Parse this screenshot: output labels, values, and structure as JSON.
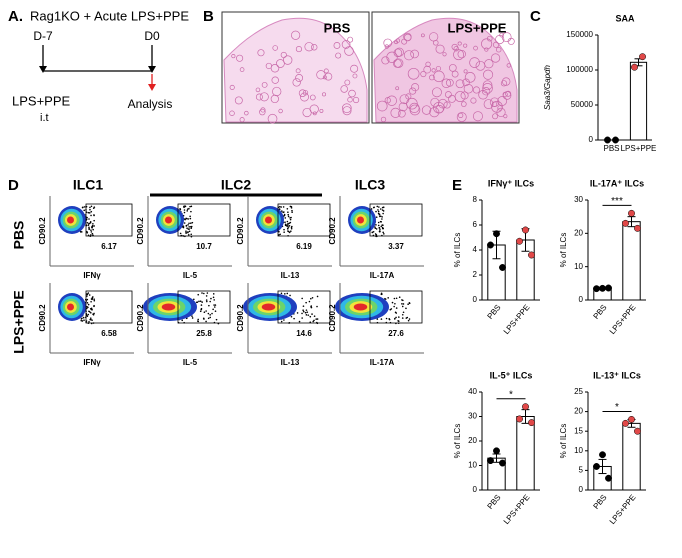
{
  "panel_a": {
    "letter": "A.",
    "title": "Rag1KO  + Acute LPS+PPE",
    "day_start": "D-7",
    "day_end": "D0",
    "treatment": "LPS+PPE",
    "route": "i.t",
    "readout": "Analysis"
  },
  "panel_b": {
    "letter": "B",
    "labels": [
      "PBS",
      "LPS+PPE"
    ]
  },
  "panel_c": {
    "letter": "C"
  },
  "panel_d": {
    "letter": "D",
    "columns": [
      "ILC1",
      "ILC2",
      "ILC3"
    ],
    "y_axis": "CD90.2",
    "x_axes": [
      "IFNγ",
      "IL-5",
      "IL-13",
      "IL-17A"
    ],
    "rows": [
      {
        "label": "PBS",
        "gates": [
          "6.17",
          "10.7",
          "6.19",
          "3.37"
        ]
      },
      {
        "label": "LPS+PPE",
        "gates": [
          "6.58",
          "25.8",
          "14.6",
          "27.6"
        ]
      }
    ]
  },
  "panel_e": {
    "letter": "E"
  },
  "chart_data": [
    {
      "type": "bar",
      "title": "SAA",
      "ylabel": "Saa3/Gapdh",
      "categories": [
        "PBS",
        "LPS+PPE"
      ],
      "values": [
        0,
        111000
      ],
      "errors": [
        0,
        5000
      ],
      "points": [
        [
          0,
          0
        ],
        [
          104000,
          119000
        ]
      ],
      "point_colors": [
        "#000000",
        "#e04848"
      ],
      "bar_color": "#ffffff",
      "ylim": [
        0,
        150000
      ],
      "yticks": [
        0,
        50000,
        100000,
        150000
      ]
    },
    {
      "type": "bar",
      "title": "IFNγ⁺ ILCs",
      "ylabel": "% of ILCs",
      "categories": [
        "PBS",
        "LPS+PPE"
      ],
      "values": [
        4.4,
        4.8
      ],
      "errors": [
        1.1,
        0.9
      ],
      "points": [
        [
          5.3,
          4.4,
          2.6
        ],
        [
          5.6,
          4.7,
          3.6
        ]
      ],
      "point_colors": [
        "#000000",
        "#e04848"
      ],
      "bar_color": "#ffffff",
      "ylim": [
        0,
        8
      ],
      "yticks": [
        0,
        2,
        4,
        6,
        8
      ]
    },
    {
      "type": "bar",
      "title": "IL-17A⁺ ILCs",
      "ylabel": "% of ILCs",
      "categories": [
        "PBS",
        "LPS+PPE"
      ],
      "values": [
        3.5,
        23.5
      ],
      "errors": [
        0.2,
        1.5
      ],
      "points": [
        [
          3.5,
          3.4,
          3.6
        ],
        [
          26,
          23,
          21.5
        ]
      ],
      "point_colors": [
        "#000000",
        "#e04848"
      ],
      "bar_color": "#ffffff",
      "ylim": [
        0,
        30
      ],
      "yticks": [
        0,
        10,
        20,
        30
      ],
      "significance": "***"
    },
    {
      "type": "bar",
      "title": "IL-5⁺ ILCs",
      "ylabel": "% of ILCs",
      "categories": [
        "PBS",
        "LPS+PPE"
      ],
      "values": [
        13,
        30
      ],
      "errors": [
        1.7,
        2.8
      ],
      "points": [
        [
          16,
          12,
          11
        ],
        [
          34,
          29,
          27.5
        ]
      ],
      "point_colors": [
        "#000000",
        "#e04848"
      ],
      "bar_color": "#ffffff",
      "ylim": [
        0,
        40
      ],
      "yticks": [
        0,
        10,
        20,
        30,
        40
      ],
      "significance": "*"
    },
    {
      "type": "bar",
      "title": "IL-13⁺ ILCs",
      "ylabel": "% of ILCs",
      "categories": [
        "PBS",
        "LPS+PPE"
      ],
      "values": [
        6,
        17
      ],
      "errors": [
        1.8,
        1
      ],
      "points": [
        [
          9,
          6,
          3
        ],
        [
          18,
          17,
          15
        ]
      ],
      "point_colors": [
        "#000000",
        "#e04848"
      ],
      "bar_color": "#ffffff",
      "ylim": [
        0,
        25
      ],
      "yticks": [
        0,
        5,
        10,
        15,
        20,
        25
      ],
      "significance": "*"
    }
  ]
}
